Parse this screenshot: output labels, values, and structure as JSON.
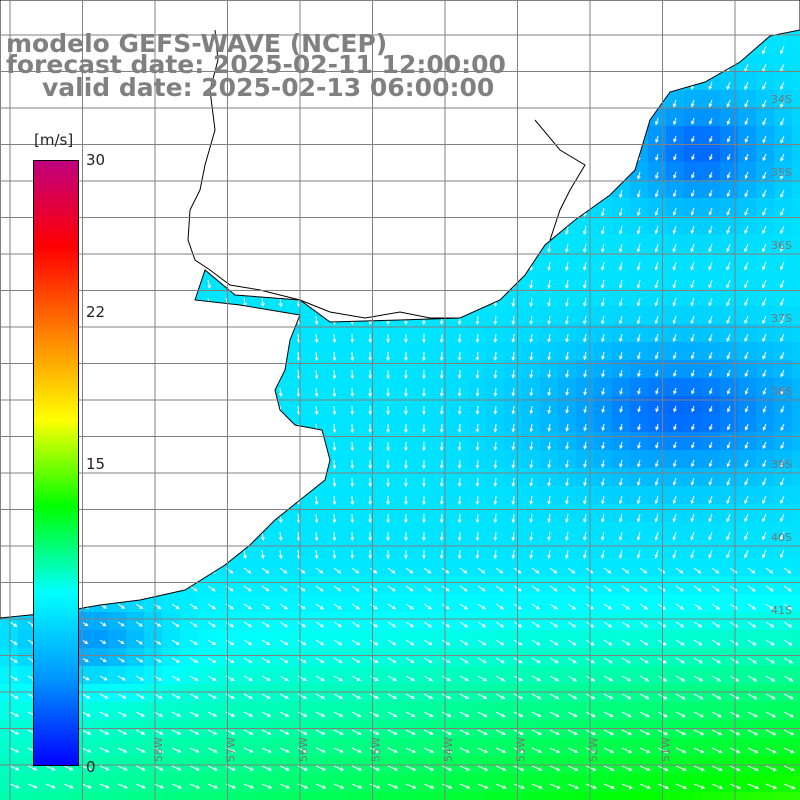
{
  "title": {
    "line1": "modelo GEFS-WAVE (NCEP)",
    "line2": "forecast date: 2025-02-11 12:00:00",
    "line3": "valid date: 2025-02-13 06:00:00"
  },
  "colorbar": {
    "unit": "[m/s]",
    "ticks": [
      "30",
      "22",
      "15",
      "0"
    ],
    "range": [
      0,
      30
    ],
    "colors": [
      "#0000ff",
      "#0096ff",
      "#00ffff",
      "#00ff00",
      "#ffff00",
      "#ff8000",
      "#ff0000",
      "#c0007f"
    ]
  },
  "lat_labels": [
    "34S",
    "35S",
    "36S",
    "37S",
    "38S",
    "39S",
    "40S",
    "41S"
  ],
  "lon_labels": [
    "58W",
    "57W",
    "56W",
    "55W",
    "54W",
    "53W",
    "52W",
    "51W"
  ],
  "land_color": "#ffffff",
  "arrow_color": "#ffffff",
  "grid_color": "#808080"
}
